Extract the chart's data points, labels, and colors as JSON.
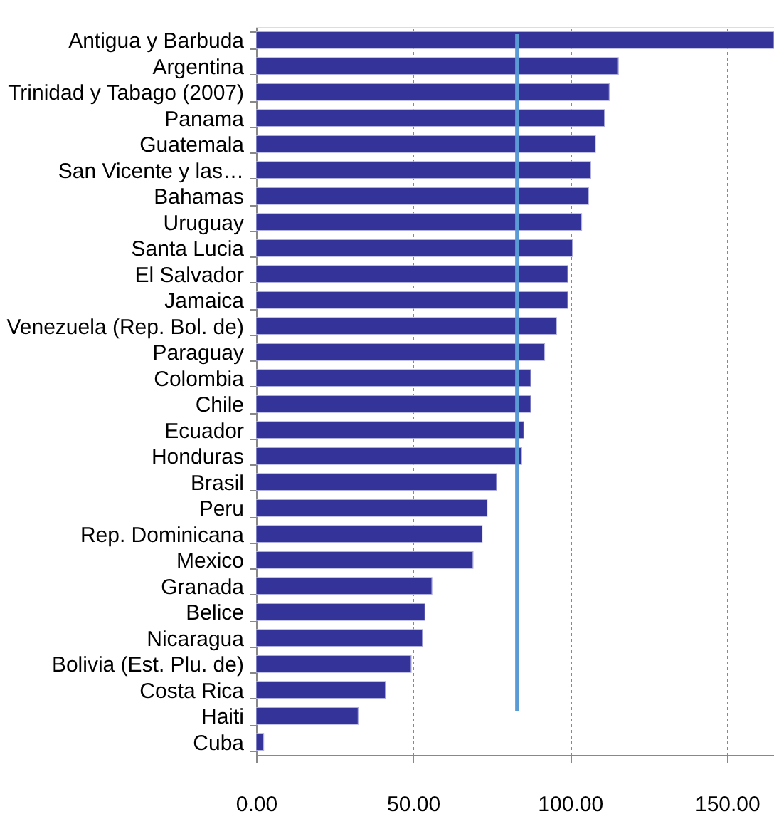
{
  "chart_data": {
    "type": "bar",
    "orientation": "horizontal",
    "categories": [
      "Antigua y Barbuda",
      "Argentina",
      "Trinidad y Tabago (2007)",
      "Panama",
      "Guatemala",
      "San Vicente y las…",
      "Bahamas",
      "Uruguay",
      "Santa Lucia",
      "El Salvador",
      "Jamaica",
      "Venezuela (Rep. Bol. de)",
      "Paraguay",
      "Colombia",
      "Chile",
      "Ecuador",
      "Honduras",
      "Brasil",
      "Peru",
      "Rep. Dominicana",
      "Mexico",
      "Granada",
      "Belice",
      "Nicaragua",
      "Bolivia (Est. Plu. de)",
      "Costa Rica",
      "Haiti",
      "Cuba"
    ],
    "values": [
      165,
      115.4,
      112.5,
      111.0,
      108.1,
      106.6,
      105.9,
      103.7,
      100.8,
      99.3,
      99.3,
      95.7,
      91.9,
      87.5,
      87.5,
      85.3,
      84.6,
      76.6,
      73.6,
      72.0,
      69.1,
      56.0,
      53.8,
      53.0,
      49.4,
      41.2,
      32.5,
      2.4
    ],
    "color": "#333399",
    "xlim": [
      0,
      165
    ],
    "xticks": [
      {
        "value": 0,
        "label": "0.00"
      },
      {
        "value": 50,
        "label": "50.00"
      },
      {
        "value": 100,
        "label": "100.00"
      },
      {
        "value": 150,
        "label": "150.00"
      }
    ],
    "grid": "x",
    "ref_lines": [
      {
        "axis": "x",
        "value": 83.1,
        "color": "#5b9bd5"
      }
    ]
  }
}
